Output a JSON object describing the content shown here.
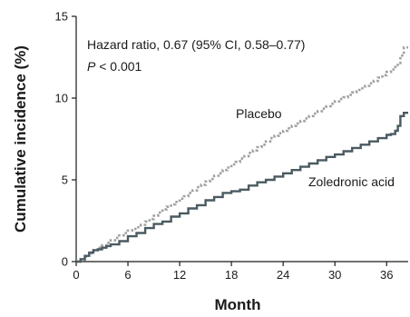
{
  "chart_data": {
    "type": "line",
    "title": "",
    "xlabel": "Month",
    "ylabel": "Cumulative incidence (%)",
    "xlim": [
      0,
      38.5
    ],
    "ylim": [
      0,
      15
    ],
    "xticks": [
      0,
      6,
      12,
      18,
      24,
      30,
      36
    ],
    "yticks": [
      0,
      5,
      10,
      15
    ],
    "grid": false,
    "annotation": {
      "hazard_ratio": "Hazard ratio, 0.67 (95% CI, 0.58–0.77)",
      "p_symbol": "P",
      "p_rest": " < 0.001"
    },
    "series": [
      {
        "name": "Placebo",
        "style": "dotted",
        "color": "#a0a0a0",
        "x": [
          0,
          0.5,
          1,
          1.5,
          2,
          2.5,
          3,
          3.5,
          4,
          4.5,
          5,
          5.5,
          6,
          6.5,
          7,
          7.5,
          8,
          8.5,
          9,
          9.5,
          10,
          10.5,
          11,
          11.5,
          12,
          12.5,
          13,
          13.5,
          14,
          14.5,
          15,
          15.5,
          16,
          16.5,
          17,
          17.5,
          18,
          18.5,
          19,
          19.5,
          20,
          20.5,
          21,
          21.5,
          22,
          22.5,
          23,
          23.5,
          24,
          24.5,
          25,
          25.5,
          26,
          26.5,
          27,
          27.5,
          28,
          28.5,
          29,
          29.5,
          30,
          30.5,
          31,
          31.5,
          32,
          32.5,
          33,
          33.5,
          34,
          34.5,
          35,
          35.5,
          36,
          36.5,
          37,
          37.3,
          37.6,
          38,
          38.5
        ],
        "y": [
          0,
          0.1,
          0.3,
          0.5,
          0.7,
          0.85,
          1.0,
          1.15,
          1.3,
          1.45,
          1.6,
          1.75,
          1.9,
          2.0,
          2.1,
          2.25,
          2.45,
          2.6,
          2.8,
          3.0,
          3.2,
          3.35,
          3.5,
          3.65,
          3.85,
          4.0,
          4.2,
          4.35,
          4.55,
          4.7,
          4.9,
          5.05,
          5.25,
          5.4,
          5.6,
          5.75,
          5.95,
          6.1,
          6.3,
          6.45,
          6.65,
          6.8,
          7.0,
          7.15,
          7.35,
          7.55,
          7.7,
          7.85,
          8.0,
          8.15,
          8.3,
          8.45,
          8.6,
          8.75,
          8.9,
          9.05,
          9.2,
          9.35,
          9.5,
          9.65,
          9.8,
          9.95,
          10.05,
          10.2,
          10.35,
          10.5,
          10.6,
          10.75,
          10.9,
          11.05,
          11.25,
          11.4,
          11.6,
          11.75,
          11.9,
          12.15,
          12.6,
          13.1,
          13.1
        ]
      },
      {
        "name": "Zoledronic acid",
        "style": "solid",
        "color": "#4a5a60",
        "x": [
          0,
          0.5,
          1,
          1.5,
          2,
          2.5,
          3,
          3.5,
          4,
          5,
          6,
          7,
          8,
          9,
          10,
          11,
          12,
          13,
          14,
          15,
          16,
          17,
          18,
          19,
          20,
          21,
          22,
          23,
          24,
          25,
          26,
          27,
          28,
          29,
          30,
          31,
          32,
          33,
          34,
          35,
          36,
          36.5,
          37,
          37.3,
          37.6,
          38,
          38.5
        ],
        "y": [
          0,
          0.15,
          0.35,
          0.55,
          0.7,
          0.75,
          0.85,
          0.95,
          1.05,
          1.25,
          1.55,
          1.75,
          2.05,
          2.3,
          2.45,
          2.75,
          2.95,
          3.25,
          3.45,
          3.75,
          3.95,
          4.2,
          4.3,
          4.4,
          4.65,
          4.85,
          5.0,
          5.2,
          5.4,
          5.6,
          5.8,
          6.0,
          6.2,
          6.4,
          6.55,
          6.75,
          6.95,
          7.15,
          7.35,
          7.55,
          7.75,
          7.8,
          8.0,
          8.3,
          8.9,
          9.1,
          9.1
        ]
      }
    ]
  }
}
